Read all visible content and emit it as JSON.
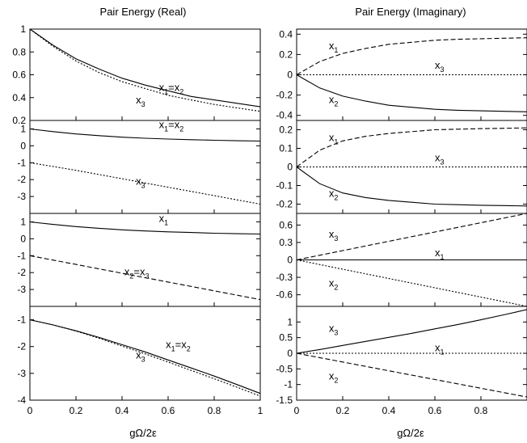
{
  "chart_data": [
    {
      "type": "line",
      "column": "left",
      "row": 0,
      "title": "Pair Energy (Real)",
      "xlabel": "gΩ/2ε",
      "xlim": [
        0,
        1
      ],
      "ylim": [
        0.2,
        1.0
      ],
      "yticks": [
        "1",
        "0.8",
        "0.6",
        "0.4",
        "0.2"
      ],
      "ytick_values": [
        1,
        0.8,
        0.6,
        0.4,
        0.2
      ],
      "series": [
        {
          "name": "x1=x2",
          "style": "solid",
          "x": [
            0,
            0.1,
            0.2,
            0.3,
            0.4,
            0.5,
            0.6,
            0.7,
            0.8,
            0.9,
            1.0
          ],
          "y": [
            1.0,
            0.86,
            0.74,
            0.65,
            0.57,
            0.51,
            0.46,
            0.41,
            0.38,
            0.35,
            0.32
          ]
        },
        {
          "name": "x3",
          "style": "dotted",
          "x": [
            0,
            0.1,
            0.2,
            0.3,
            0.4,
            0.5,
            0.6,
            0.7,
            0.8,
            0.9,
            1.0
          ],
          "y": [
            1.0,
            0.85,
            0.72,
            0.62,
            0.54,
            0.48,
            0.42,
            0.38,
            0.34,
            0.31,
            0.28
          ]
        }
      ],
      "annotations": [
        {
          "parts": [
            [
              "x",
              "n"
            ],
            [
              "1",
              "s"
            ],
            [
              "=x",
              "n"
            ],
            [
              "2",
              "s"
            ]
          ],
          "x": 0.56,
          "y": 0.46
        },
        {
          "parts": [
            [
              "x",
              "n"
            ],
            [
              "3",
              "s"
            ]
          ],
          "x": 0.46,
          "y": 0.35
        }
      ]
    },
    {
      "type": "line",
      "column": "right",
      "row": 0,
      "title": "Pair Energy (Imaginary)",
      "xlabel": "gΩ/2ε",
      "xlim": [
        0,
        1
      ],
      "ylim": [
        -0.45,
        0.45
      ],
      "yticks": [
        "0.4",
        "0.2",
        "0",
        "-0.2",
        "-0.4"
      ],
      "ytick_values": [
        0.4,
        0.2,
        0,
        -0.2,
        -0.4
      ],
      "series": [
        {
          "name": "x1",
          "style": "dashed",
          "x": [
            0,
            0.1,
            0.2,
            0.3,
            0.4,
            0.5,
            0.6,
            0.7,
            0.8,
            0.9,
            1.0
          ],
          "y": [
            0,
            0.13,
            0.21,
            0.26,
            0.3,
            0.32,
            0.34,
            0.35,
            0.355,
            0.36,
            0.365
          ]
        },
        {
          "name": "x2",
          "style": "solid",
          "x": [
            0,
            0.1,
            0.2,
            0.3,
            0.4,
            0.5,
            0.6,
            0.7,
            0.8,
            0.9,
            1.0
          ],
          "y": [
            0,
            -0.13,
            -0.21,
            -0.26,
            -0.3,
            -0.32,
            -0.34,
            -0.35,
            -0.355,
            -0.36,
            -0.365
          ]
        },
        {
          "name": "x3",
          "style": "dotted",
          "x": [
            0,
            1
          ],
          "y": [
            0,
            0
          ]
        }
      ],
      "annotations": [
        {
          "parts": [
            [
              "x",
              "n"
            ],
            [
              "1",
              "s"
            ]
          ],
          "x": 0.14,
          "y": 0.25
        },
        {
          "parts": [
            [
              "x",
              "n"
            ],
            [
              "3",
              "s"
            ]
          ],
          "x": 0.6,
          "y": 0.06
        },
        {
          "parts": [
            [
              "x",
              "n"
            ],
            [
              "2",
              "s"
            ]
          ],
          "x": 0.14,
          "y": -0.28
        }
      ]
    },
    {
      "type": "line",
      "column": "left",
      "row": 1,
      "xlabel": "gΩ/2ε",
      "xlim": [
        0,
        1
      ],
      "ylim": [
        -4.0,
        1.5
      ],
      "yticks": [
        "1",
        "0",
        "-1",
        "-2",
        "-3"
      ],
      "ytick_values": [
        1,
        0,
        -1,
        -2,
        -3
      ],
      "series": [
        {
          "name": "x1=x2",
          "style": "solid",
          "x": [
            0,
            0.1,
            0.2,
            0.3,
            0.4,
            0.5,
            0.6,
            0.7,
            0.8,
            0.9,
            1.0
          ],
          "y": [
            1.0,
            0.84,
            0.7,
            0.6,
            0.51,
            0.45,
            0.4,
            0.36,
            0.33,
            0.3,
            0.28
          ]
        },
        {
          "name": "x3",
          "style": "dotted",
          "x": [
            0,
            0.1,
            0.2,
            0.3,
            0.4,
            0.5,
            0.6,
            0.7,
            0.8,
            0.9,
            1.0
          ],
          "y": [
            -1.0,
            -1.22,
            -1.45,
            -1.7,
            -1.95,
            -2.2,
            -2.45,
            -2.7,
            -2.95,
            -3.2,
            -3.45
          ]
        }
      ],
      "annotations": [
        {
          "parts": [
            [
              "x",
              "n"
            ],
            [
              "1",
              "s"
            ],
            [
              "=x",
              "n"
            ],
            [
              "2",
              "s"
            ]
          ],
          "x": 0.56,
          "y": 1.05
        },
        {
          "parts": [
            [
              "x",
              "n"
            ],
            [
              "3",
              "s"
            ]
          ],
          "x": 0.46,
          "y": -2.3
        }
      ]
    },
    {
      "type": "line",
      "column": "right",
      "row": 1,
      "xlabel": "gΩ/2ε",
      "xlim": [
        0,
        1
      ],
      "ylim": [
        -0.25,
        0.25
      ],
      "yticks": [
        "0.2",
        "0.1",
        "0",
        "-0.1",
        "-0.2"
      ],
      "ytick_values": [
        0.2,
        0.1,
        0,
        -0.1,
        -0.2
      ],
      "series": [
        {
          "name": "x1",
          "style": "dashed",
          "x": [
            0,
            0.1,
            0.2,
            0.3,
            0.4,
            0.5,
            0.6,
            0.7,
            0.8,
            0.9,
            1.0
          ],
          "y": [
            0,
            0.09,
            0.14,
            0.165,
            0.18,
            0.19,
            0.2,
            0.203,
            0.206,
            0.208,
            0.21
          ]
        },
        {
          "name": "x2",
          "style": "solid",
          "x": [
            0,
            0.1,
            0.2,
            0.3,
            0.4,
            0.5,
            0.6,
            0.7,
            0.8,
            0.9,
            1.0
          ],
          "y": [
            0,
            -0.09,
            -0.14,
            -0.165,
            -0.18,
            -0.19,
            -0.2,
            -0.203,
            -0.206,
            -0.208,
            -0.21
          ]
        },
        {
          "name": "x3",
          "style": "dotted",
          "x": [
            0,
            1
          ],
          "y": [
            0,
            0
          ]
        }
      ],
      "annotations": [
        {
          "parts": [
            [
              "x",
              "n"
            ],
            [
              "1",
              "s"
            ]
          ],
          "x": 0.14,
          "y": 0.14
        },
        {
          "parts": [
            [
              "x",
              "n"
            ],
            [
              "3",
              "s"
            ]
          ],
          "x": 0.6,
          "y": 0.03
        },
        {
          "parts": [
            [
              "x",
              "n"
            ],
            [
              "2",
              "s"
            ]
          ],
          "x": 0.14,
          "y": -0.16
        }
      ]
    },
    {
      "type": "line",
      "column": "left",
      "row": 2,
      "xlabel": "gΩ/2ε",
      "xlim": [
        0,
        1
      ],
      "ylim": [
        -4.0,
        1.5
      ],
      "yticks": [
        "1",
        "0",
        "-1",
        "-2",
        "-3"
      ],
      "ytick_values": [
        1,
        0,
        -1,
        -2,
        -3
      ],
      "series": [
        {
          "name": "x1",
          "style": "solid",
          "x": [
            0,
            0.1,
            0.2,
            0.3,
            0.4,
            0.5,
            0.6,
            0.7,
            0.8,
            0.9,
            1.0
          ],
          "y": [
            1.0,
            0.85,
            0.72,
            0.62,
            0.53,
            0.46,
            0.41,
            0.37,
            0.33,
            0.3,
            0.28
          ]
        },
        {
          "name": "x2=x3",
          "style": "dashed",
          "x": [
            0,
            0.1,
            0.2,
            0.3,
            0.4,
            0.5,
            0.6,
            0.7,
            0.8,
            0.9,
            1.0
          ],
          "y": [
            -1.0,
            -1.26,
            -1.52,
            -1.78,
            -2.04,
            -2.3,
            -2.56,
            -2.82,
            -3.08,
            -3.34,
            -3.6
          ]
        }
      ],
      "annotations": [
        {
          "parts": [
            [
              "x",
              "n"
            ],
            [
              "1",
              "s"
            ]
          ],
          "x": 0.56,
          "y": 1.0
        },
        {
          "parts": [
            [
              "x",
              "n"
            ],
            [
              "2",
              "s"
            ],
            [
              "=x",
              "n"
            ],
            [
              "3",
              "s"
            ]
          ],
          "x": 0.41,
          "y": -2.15
        }
      ]
    },
    {
      "type": "line",
      "column": "right",
      "row": 2,
      "xlabel": "gΩ/2ε",
      "xlim": [
        0,
        1
      ],
      "ylim": [
        -0.8,
        0.8
      ],
      "yticks": [
        "0.6",
        "0.3",
        "0",
        "-0.3",
        "-0.6"
      ],
      "ytick_values": [
        0.6,
        0.3,
        0,
        -0.3,
        -0.6
      ],
      "series": [
        {
          "name": "x3",
          "style": "dashed",
          "x": [
            0,
            1
          ],
          "y": [
            0,
            0.8
          ]
        },
        {
          "name": "x1",
          "style": "solid",
          "x": [
            0,
            1
          ],
          "y": [
            0,
            0
          ]
        },
        {
          "name": "x2",
          "style": "dotted",
          "x": [
            0,
            1
          ],
          "y": [
            0,
            -0.8
          ]
        }
      ],
      "annotations": [
        {
          "parts": [
            [
              "x",
              "n"
            ],
            [
              "3",
              "s"
            ]
          ],
          "x": 0.14,
          "y": 0.38
        },
        {
          "parts": [
            [
              "x",
              "n"
            ],
            [
              "1",
              "s"
            ]
          ],
          "x": 0.6,
          "y": 0.06
        },
        {
          "parts": [
            [
              "x",
              "n"
            ],
            [
              "2",
              "s"
            ]
          ],
          "x": 0.14,
          "y": -0.46
        }
      ]
    },
    {
      "type": "line",
      "column": "left",
      "row": 3,
      "xlabel": "gΩ/2ε",
      "xlim": [
        0,
        1
      ],
      "ylim": [
        -4.0,
        -0.5
      ],
      "yticks": [
        "-1",
        "-2",
        "-3",
        "-4"
      ],
      "ytick_values": [
        -1,
        -2,
        -3,
        -4
      ],
      "xticks": [
        "0",
        "0.2",
        "0.4",
        "0.6",
        "0.8",
        "1"
      ],
      "xtick_values": [
        0,
        0.2,
        0.4,
        0.6,
        0.8,
        1
      ],
      "series": [
        {
          "name": "x1=x2",
          "style": "solid",
          "x": [
            0,
            0.1,
            0.2,
            0.3,
            0.4,
            0.5,
            0.6,
            0.7,
            0.8,
            0.9,
            1.0
          ],
          "y": [
            -1.0,
            -1.19,
            -1.41,
            -1.66,
            -1.93,
            -2.2,
            -2.5,
            -2.8,
            -3.1,
            -3.42,
            -3.75
          ]
        },
        {
          "name": "x3",
          "style": "dotted",
          "x": [
            0,
            0.1,
            0.2,
            0.3,
            0.4,
            0.5,
            0.6,
            0.7,
            0.8,
            0.9,
            1.0
          ],
          "y": [
            -1.0,
            -1.19,
            -1.42,
            -1.69,
            -1.98,
            -2.27,
            -2.58,
            -2.89,
            -3.2,
            -3.52,
            -3.85
          ]
        }
      ],
      "annotations": [
        {
          "parts": [
            [
              "x",
              "n"
            ],
            [
              "1",
              "s"
            ],
            [
              "=x",
              "n"
            ],
            [
              "2",
              "s"
            ]
          ],
          "x": 0.59,
          "y": -2.05
        },
        {
          "parts": [
            [
              "x",
              "n"
            ],
            [
              "3",
              "s"
            ]
          ],
          "x": 0.46,
          "y": -2.45
        }
      ]
    },
    {
      "type": "line",
      "column": "right",
      "row": 3,
      "xlabel": "gΩ/2ε",
      "xlim": [
        0,
        1
      ],
      "ylim": [
        -1.5,
        1.5
      ],
      "yticks": [
        "1",
        "0.5",
        "0",
        "-0.5",
        "-1",
        "-1.5"
      ],
      "ytick_values": [
        1,
        0.5,
        0,
        -0.5,
        -1,
        -1.5
      ],
      "xticks": [
        "0",
        "0.2",
        "0.4",
        "0.6",
        "0.8"
      ],
      "xtick_values": [
        0,
        0.2,
        0.4,
        0.6,
        0.8
      ],
      "series": [
        {
          "name": "x3",
          "style": "solid",
          "x": [
            0,
            0.1,
            0.2,
            0.3,
            0.4,
            0.5,
            0.6,
            0.7,
            0.8,
            0.9,
            1.0
          ],
          "y": [
            0,
            0.12,
            0.25,
            0.38,
            0.51,
            0.64,
            0.78,
            0.92,
            1.07,
            1.23,
            1.4
          ]
        },
        {
          "name": "x1",
          "style": "dotted",
          "x": [
            0,
            1
          ],
          "y": [
            0,
            0
          ]
        },
        {
          "name": "x2",
          "style": "dashed",
          "x": [
            0,
            1
          ],
          "y": [
            0,
            -1.4
          ]
        }
      ],
      "annotations": [
        {
          "parts": [
            [
              "x",
              "n"
            ],
            [
              "3",
              "s"
            ]
          ],
          "x": 0.14,
          "y": 0.68
        },
        {
          "parts": [
            [
              "x",
              "n"
            ],
            [
              "1",
              "s"
            ]
          ],
          "x": 0.6,
          "y": 0.06
        },
        {
          "parts": [
            [
              "x",
              "n"
            ],
            [
              "2",
              "s"
            ]
          ],
          "x": 0.14,
          "y": -0.84
        }
      ]
    }
  ]
}
